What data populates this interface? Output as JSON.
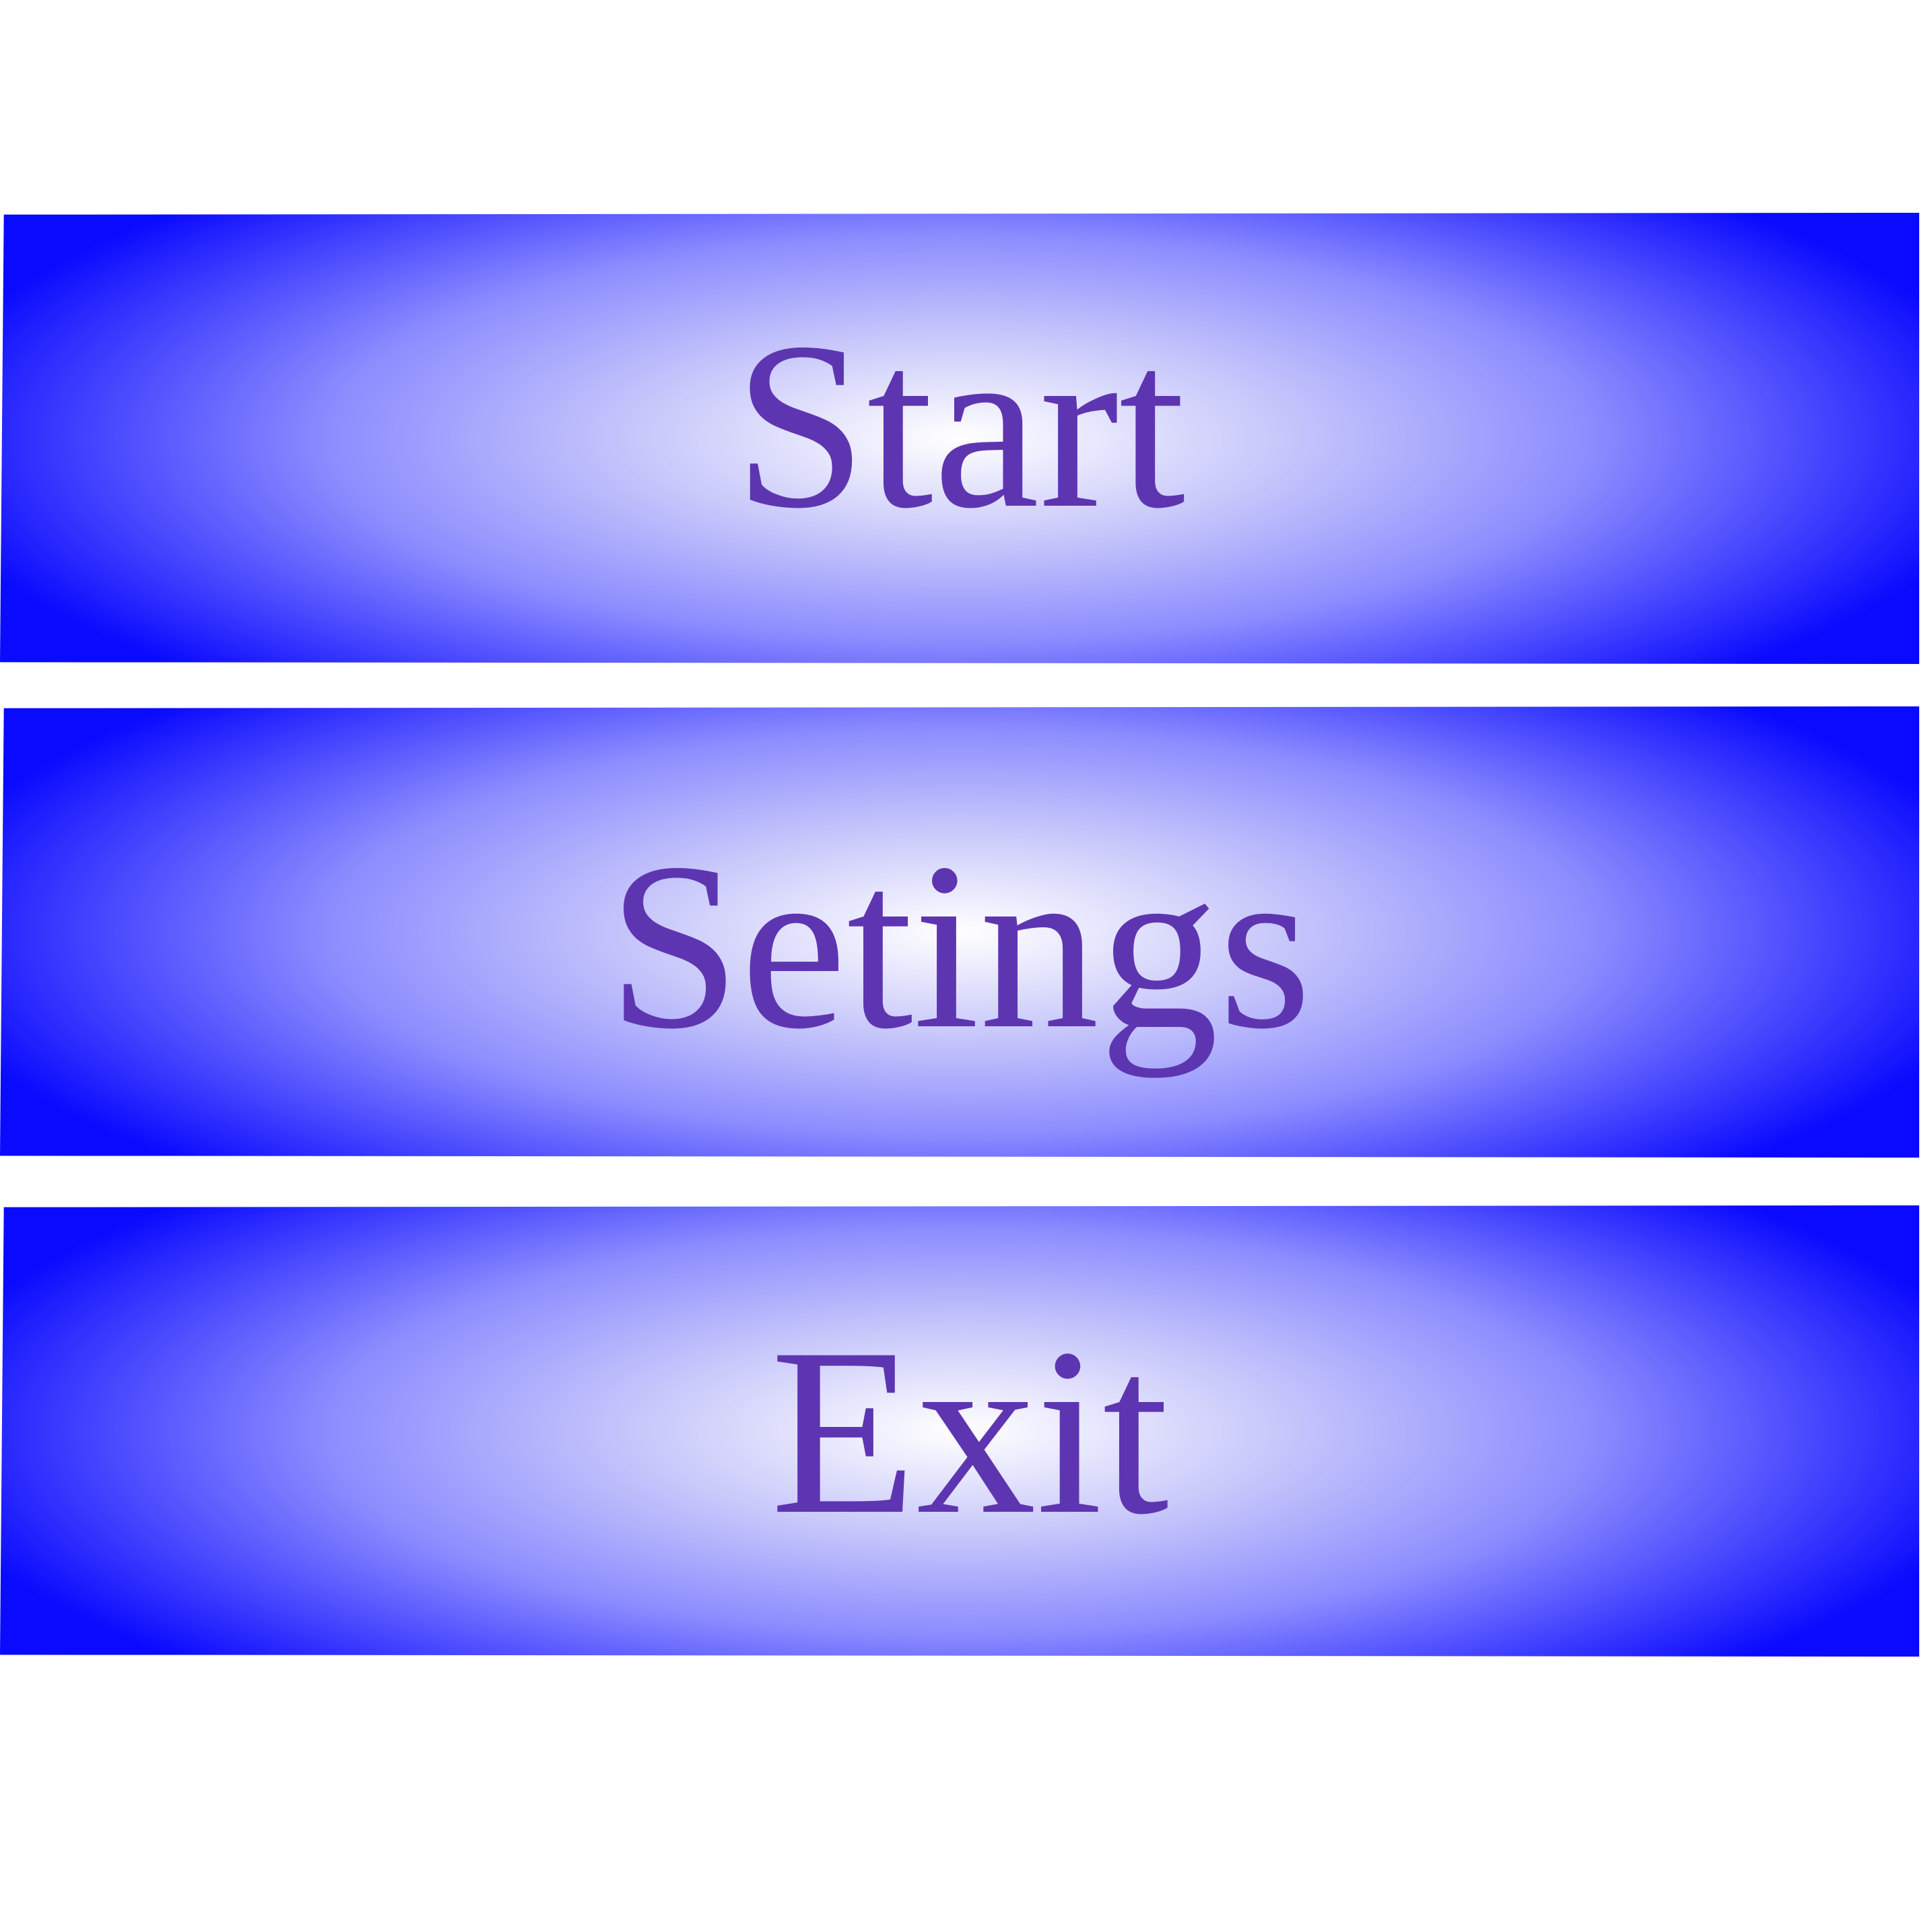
{
  "menu": {
    "buttons": [
      {
        "label": "Start"
      },
      {
        "label": "Setings"
      },
      {
        "label": "Exit"
      }
    ]
  },
  "colors": {
    "edge_blue": "#0a0aff",
    "center_white": "#ffffff",
    "label_purple": "#5e35b1",
    "background": "#ffffff"
  }
}
